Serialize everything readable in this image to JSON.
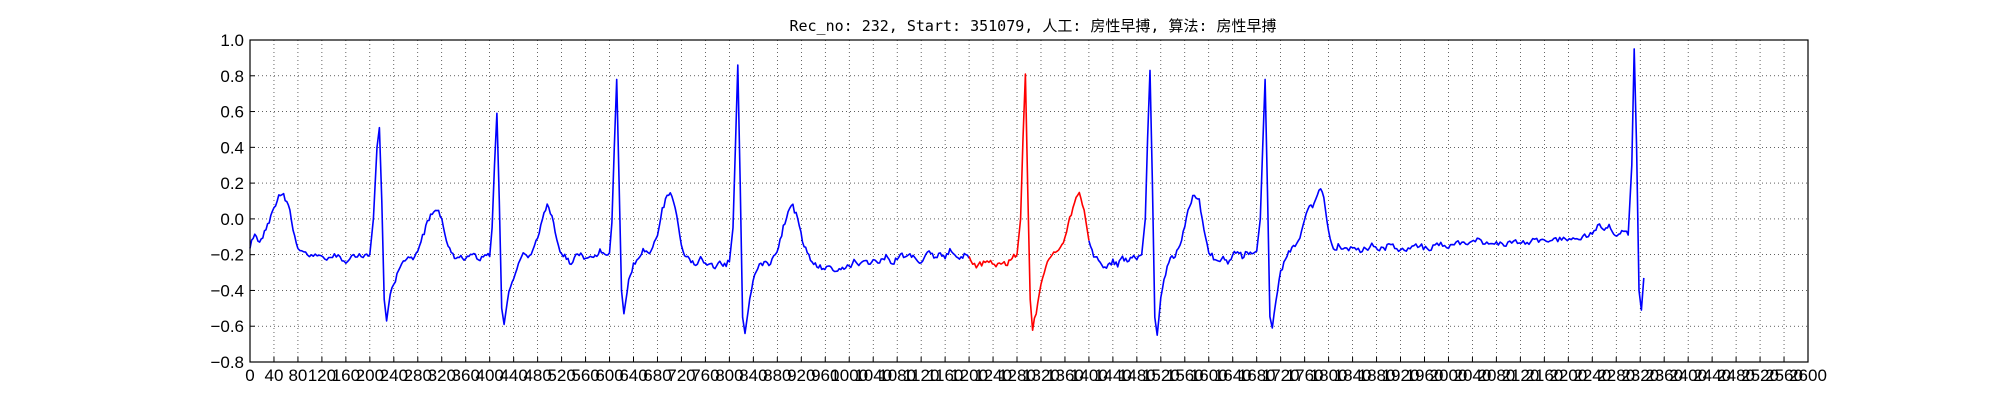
{
  "chart_data": {
    "type": "line",
    "title": "Rec_no: 232, Start: 351079, 人工: 房性早搏, 算法: 房性早搏",
    "xlabel": "",
    "ylabel": "",
    "xlim": [
      0,
      2600
    ],
    "ylim": [
      -0.8,
      1.0
    ],
    "grid": true,
    "grid_style": "dotted",
    "yticks": [
      -0.8,
      -0.6,
      -0.4,
      -0.2,
      0.0,
      0.2,
      0.4,
      0.6,
      0.8,
      1.0
    ],
    "ytick_labels": [
      "−0.8",
      "−0.6",
      "−0.4",
      "−0.2",
      "0.0",
      "0.2",
      "0.4",
      "0.6",
      "0.8",
      "1.0"
    ],
    "xticks": [
      0,
      40,
      80,
      120,
      160,
      200,
      240,
      280,
      320,
      360,
      400,
      440,
      480,
      520,
      560,
      600,
      640,
      680,
      720,
      760,
      800,
      840,
      880,
      920,
      960,
      1000,
      1040,
      1080,
      1120,
      1160,
      1200,
      1240,
      1280,
      1320,
      1360,
      1400,
      1440,
      1480,
      1520,
      1560,
      1600,
      1640,
      1680,
      1720,
      1760,
      1800,
      1840,
      1880,
      1920,
      1960,
      2000,
      2040,
      2080,
      2120,
      2160,
      2200,
      2240,
      2280,
      2320,
      2360,
      2400,
      2440,
      2480,
      2520,
      2560,
      2600
    ],
    "series_colors": {
      "normal": "#0000ff",
      "highlighted_beat": "#ff0000"
    },
    "highlight_range": [
      1200,
      1400
    ],
    "ecg_samples": [
      [
        0,
        -0.15
      ],
      [
        8,
        -0.1
      ],
      [
        16,
        -0.12
      ],
      [
        24,
        -0.08
      ],
      [
        32,
        -0.02
      ],
      [
        40,
        0.06
      ],
      [
        48,
        0.12
      ],
      [
        56,
        0.13
      ],
      [
        64,
        0.08
      ],
      [
        72,
        -0.05
      ],
      [
        80,
        -0.18
      ],
      [
        96,
        -0.2
      ],
      [
        112,
        -0.2
      ],
      [
        128,
        -0.23
      ],
      [
        144,
        -0.2
      ],
      [
        160,
        -0.24
      ],
      [
        176,
        -0.2
      ],
      [
        192,
        -0.21
      ],
      [
        200,
        -0.2
      ],
      [
        206,
        0.0
      ],
      [
        212,
        0.4
      ],
      [
        216,
        0.51
      ],
      [
        220,
        0.1
      ],
      [
        224,
        -0.45
      ],
      [
        228,
        -0.57
      ],
      [
        234,
        -0.42
      ],
      [
        240,
        -0.36
      ],
      [
        248,
        -0.3
      ],
      [
        256,
        -0.24
      ],
      [
        264,
        -0.2
      ],
      [
        272,
        -0.22
      ],
      [
        280,
        -0.18
      ],
      [
        288,
        -0.1
      ],
      [
        296,
        -0.02
      ],
      [
        304,
        0.04
      ],
      [
        312,
        0.05
      ],
      [
        320,
        0.0
      ],
      [
        328,
        -0.12
      ],
      [
        336,
        -0.2
      ],
      [
        344,
        -0.22
      ],
      [
        352,
        -0.21
      ],
      [
        360,
        -0.23
      ],
      [
        368,
        -0.2
      ],
      [
        376,
        -0.21
      ],
      [
        384,
        -0.22
      ],
      [
        392,
        -0.2
      ],
      [
        400,
        -0.21
      ],
      [
        404,
        -0.05
      ],
      [
        408,
        0.3
      ],
      [
        412,
        0.59
      ],
      [
        416,
        0.1
      ],
      [
        420,
        -0.5
      ],
      [
        424,
        -0.59
      ],
      [
        432,
        -0.4
      ],
      [
        440,
        -0.32
      ],
      [
        448,
        -0.24
      ],
      [
        456,
        -0.2
      ],
      [
        464,
        -0.22
      ],
      [
        472,
        -0.18
      ],
      [
        480,
        -0.1
      ],
      [
        488,
        0.0
      ],
      [
        496,
        0.08
      ],
      [
        504,
        0.02
      ],
      [
        512,
        -0.12
      ],
      [
        520,
        -0.2
      ],
      [
        528,
        -0.22
      ],
      [
        536,
        -0.25
      ],
      [
        544,
        -0.21
      ],
      [
        552,
        -0.2
      ],
      [
        560,
        -0.22
      ],
      [
        568,
        -0.2
      ],
      [
        576,
        -0.21
      ],
      [
        584,
        -0.18
      ],
      [
        592,
        -0.2
      ],
      [
        600,
        -0.19
      ],
      [
        604,
        -0.02
      ],
      [
        608,
        0.4
      ],
      [
        612,
        0.78
      ],
      [
        616,
        0.2
      ],
      [
        620,
        -0.4
      ],
      [
        624,
        -0.53
      ],
      [
        632,
        -0.35
      ],
      [
        640,
        -0.26
      ],
      [
        648,
        -0.22
      ],
      [
        656,
        -0.18
      ],
      [
        664,
        -0.2
      ],
      [
        672,
        -0.15
      ],
      [
        680,
        -0.08
      ],
      [
        688,
        0.05
      ],
      [
        696,
        0.13
      ],
      [
        704,
        0.14
      ],
      [
        712,
        0.02
      ],
      [
        720,
        -0.15
      ],
      [
        728,
        -0.22
      ],
      [
        736,
        -0.23
      ],
      [
        744,
        -0.25
      ],
      [
        752,
        -0.22
      ],
      [
        760,
        -0.26
      ],
      [
        768,
        -0.24
      ],
      [
        776,
        -0.27
      ],
      [
        784,
        -0.25
      ],
      [
        792,
        -0.26
      ],
      [
        800,
        -0.24
      ],
      [
        806,
        -0.05
      ],
      [
        810,
        0.4
      ],
      [
        814,
        0.86
      ],
      [
        818,
        0.2
      ],
      [
        822,
        -0.55
      ],
      [
        826,
        -0.64
      ],
      [
        834,
        -0.45
      ],
      [
        842,
        -0.3
      ],
      [
        850,
        -0.26
      ],
      [
        858,
        -0.24
      ],
      [
        866,
        -0.26
      ],
      [
        874,
        -0.22
      ],
      [
        882,
        -0.15
      ],
      [
        890,
        -0.05
      ],
      [
        898,
        0.05
      ],
      [
        906,
        0.07
      ],
      [
        914,
        0.0
      ],
      [
        922,
        -0.12
      ],
      [
        930,
        -0.2
      ],
      [
        938,
        -0.24
      ],
      [
        946,
        -0.26
      ],
      [
        954,
        -0.27
      ],
      [
        962,
        -0.28
      ],
      [
        970,
        -0.27
      ],
      [
        978,
        -0.3
      ],
      [
        986,
        -0.28
      ],
      [
        994,
        -0.26
      ],
      [
        1000,
        -0.27
      ],
      [
        1008,
        -0.24
      ],
      [
        1016,
        -0.26
      ],
      [
        1024,
        -0.22
      ],
      [
        1032,
        -0.25
      ],
      [
        1040,
        -0.23
      ],
      [
        1048,
        -0.24
      ],
      [
        1056,
        -0.22
      ],
      [
        1064,
        -0.2
      ],
      [
        1072,
        -0.25
      ],
      [
        1080,
        -0.22
      ],
      [
        1088,
        -0.2
      ],
      [
        1096,
        -0.22
      ],
      [
        1104,
        -0.2
      ],
      [
        1112,
        -0.22
      ],
      [
        1120,
        -0.26
      ],
      [
        1128,
        -0.2
      ],
      [
        1136,
        -0.18
      ],
      [
        1144,
        -0.22
      ],
      [
        1152,
        -0.2
      ],
      [
        1160,
        -0.22
      ],
      [
        1168,
        -0.18
      ],
      [
        1176,
        -0.2
      ],
      [
        1184,
        -0.22
      ],
      [
        1192,
        -0.2
      ],
      [
        1200,
        -0.22
      ]
    ],
    "ecg_samples_part2": [
      [
        1200,
        -0.22
      ],
      [
        1212,
        -0.26
      ],
      [
        1224,
        -0.25
      ],
      [
        1236,
        -0.24
      ],
      [
        1248,
        -0.26
      ],
      [
        1256,
        -0.24
      ],
      [
        1264,
        -0.25
      ],
      [
        1272,
        -0.22
      ],
      [
        1280,
        -0.2
      ],
      [
        1286,
        0.0
      ],
      [
        1290,
        0.45
      ],
      [
        1294,
        0.81
      ],
      [
        1298,
        0.15
      ],
      [
        1302,
        -0.45
      ],
      [
        1306,
        -0.61
      ],
      [
        1312,
        -0.52
      ],
      [
        1320,
        -0.38
      ],
      [
        1328,
        -0.26
      ],
      [
        1336,
        -0.2
      ],
      [
        1344,
        -0.19
      ],
      [
        1352,
        -0.16
      ],
      [
        1360,
        -0.1
      ],
      [
        1368,
        0.0
      ],
      [
        1376,
        0.1
      ],
      [
        1384,
        0.15
      ],
      [
        1392,
        0.05
      ],
      [
        1400,
        -0.12
      ]
    ],
    "ecg_samples_part3": [
      [
        1400,
        -0.12
      ],
      [
        1408,
        -0.2
      ],
      [
        1416,
        -0.24
      ],
      [
        1424,
        -0.27
      ],
      [
        1432,
        -0.26
      ],
      [
        1440,
        -0.24
      ],
      [
        1448,
        -0.26
      ],
      [
        1456,
        -0.22
      ],
      [
        1464,
        -0.23
      ],
      [
        1472,
        -0.21
      ],
      [
        1480,
        -0.22
      ],
      [
        1488,
        -0.2
      ],
      [
        1494,
        0.0
      ],
      [
        1498,
        0.45
      ],
      [
        1502,
        0.83
      ],
      [
        1506,
        0.2
      ],
      [
        1510,
        -0.55
      ],
      [
        1514,
        -0.65
      ],
      [
        1520,
        -0.45
      ],
      [
        1528,
        -0.3
      ],
      [
        1536,
        -0.22
      ],
      [
        1544,
        -0.2
      ],
      [
        1552,
        -0.15
      ],
      [
        1560,
        -0.05
      ],
      [
        1568,
        0.08
      ],
      [
        1576,
        0.14
      ],
      [
        1584,
        0.1
      ],
      [
        1592,
        -0.05
      ],
      [
        1600,
        -0.18
      ],
      [
        1608,
        -0.22
      ],
      [
        1616,
        -0.25
      ],
      [
        1624,
        -0.21
      ],
      [
        1632,
        -0.24
      ],
      [
        1640,
        -0.2
      ],
      [
        1648,
        -0.18
      ],
      [
        1656,
        -0.21
      ],
      [
        1664,
        -0.19
      ],
      [
        1672,
        -0.2
      ],
      [
        1680,
        -0.18
      ],
      [
        1686,
        0.0
      ],
      [
        1690,
        0.4
      ],
      [
        1694,
        0.78
      ],
      [
        1698,
        0.15
      ],
      [
        1702,
        -0.55
      ],
      [
        1706,
        -0.61
      ],
      [
        1712,
        -0.45
      ],
      [
        1720,
        -0.3
      ],
      [
        1728,
        -0.22
      ],
      [
        1736,
        -0.18
      ],
      [
        1744,
        -0.15
      ],
      [
        1752,
        -0.1
      ],
      [
        1760,
        0.0
      ],
      [
        1768,
        0.06
      ],
      [
        1776,
        0.08
      ],
      [
        1784,
        0.17
      ],
      [
        1792,
        0.12
      ],
      [
        1800,
        -0.08
      ],
      [
        1808,
        -0.18
      ],
      [
        1816,
        -0.15
      ],
      [
        1824,
        -0.17
      ],
      [
        1840,
        -0.16
      ],
      [
        1856,
        -0.18
      ],
      [
        1872,
        -0.15
      ],
      [
        1888,
        -0.17
      ],
      [
        1904,
        -0.15
      ],
      [
        1920,
        -0.18
      ],
      [
        1936,
        -0.16
      ],
      [
        1952,
        -0.15
      ],
      [
        1968,
        -0.17
      ],
      [
        1984,
        -0.14
      ],
      [
        2000,
        -0.16
      ],
      [
        2016,
        -0.13
      ],
      [
        2032,
        -0.15
      ],
      [
        2048,
        -0.12
      ],
      [
        2064,
        -0.14
      ],
      [
        2080,
        -0.13
      ],
      [
        2096,
        -0.15
      ],
      [
        2112,
        -0.12
      ],
      [
        2128,
        -0.14
      ],
      [
        2144,
        -0.11
      ],
      [
        2160,
        -0.13
      ],
      [
        2176,
        -0.12
      ],
      [
        2192,
        -0.1
      ],
      [
        2208,
        -0.12
      ],
      [
        2224,
        -0.1
      ],
      [
        2240,
        -0.08
      ],
      [
        2252,
        -0.02
      ],
      [
        2260,
        -0.06
      ],
      [
        2268,
        -0.03
      ],
      [
        2276,
        -0.08
      ],
      [
        2284,
        -0.1
      ],
      [
        2292,
        -0.07
      ],
      [
        2300,
        -0.09
      ],
      [
        2306,
        0.3
      ],
      [
        2310,
        0.95
      ],
      [
        2314,
        0.4
      ],
      [
        2318,
        -0.4
      ],
      [
        2322,
        -0.51
      ],
      [
        2326,
        -0.33
      ]
    ]
  }
}
